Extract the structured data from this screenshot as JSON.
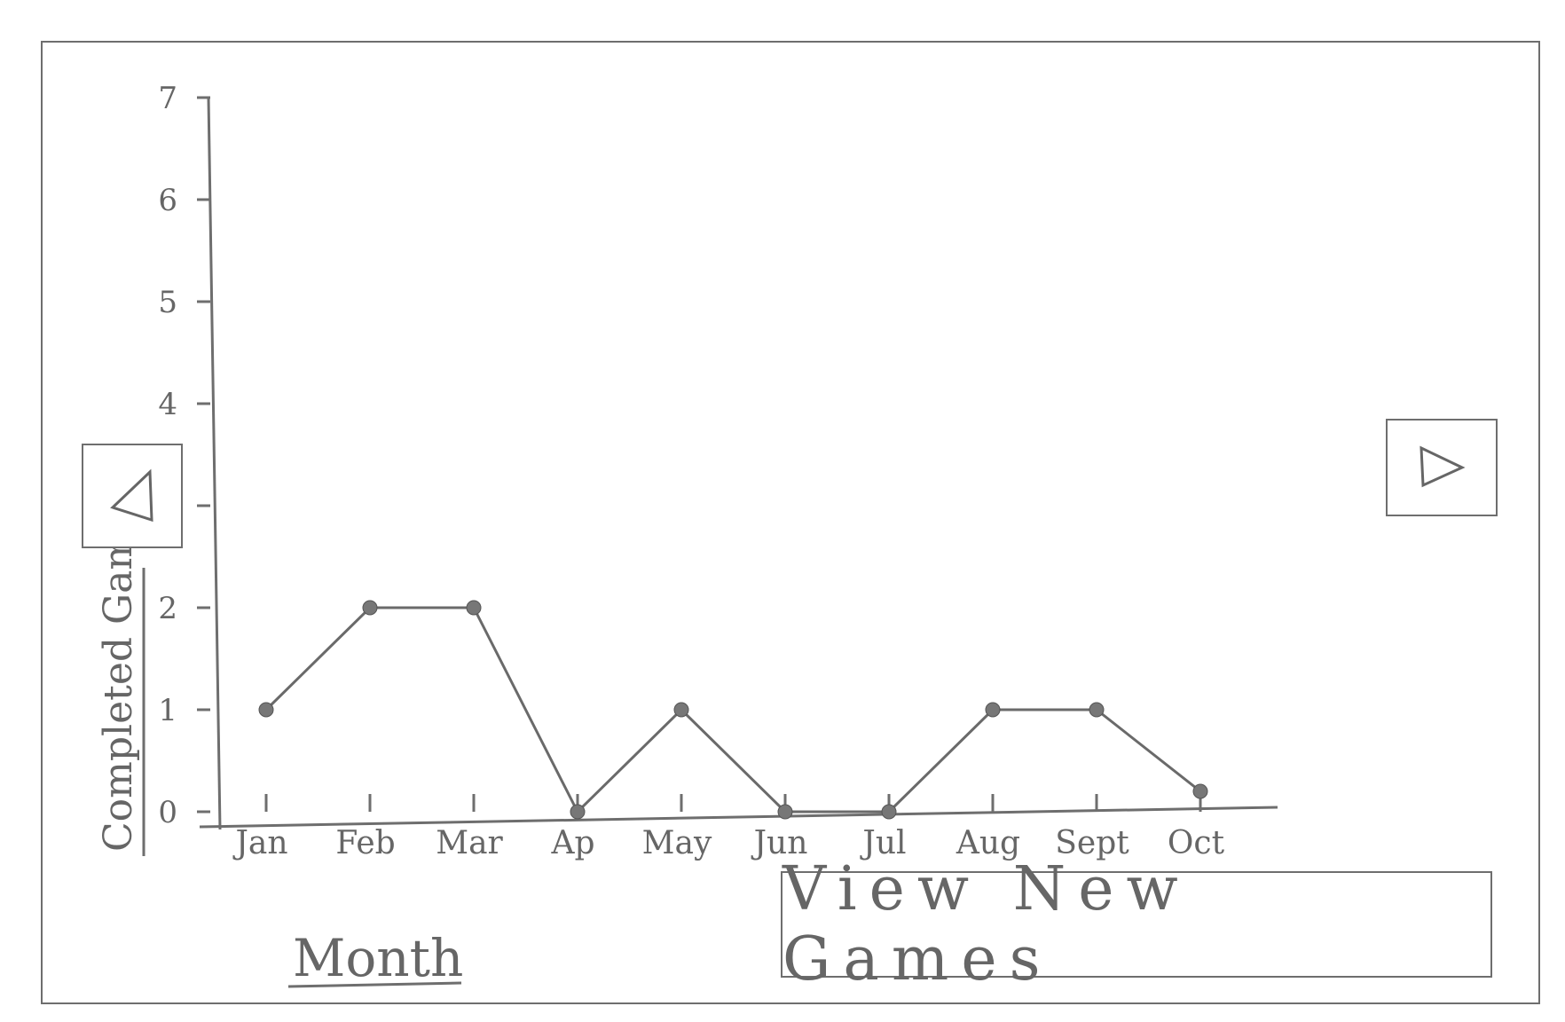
{
  "chart_data": {
    "type": "line",
    "categories": [
      "Jan",
      "Feb",
      "Mar",
      "Ap",
      "May",
      "Jun",
      "Jul",
      "Aug",
      "Sept",
      "Oct"
    ],
    "series": [
      {
        "values": [
          1,
          2,
          2,
          0,
          1,
          0,
          0,
          1,
          1,
          0.2
        ]
      }
    ],
    "y_ticks": [
      0,
      1,
      2,
      3,
      4,
      5,
      6,
      7
    ],
    "xlabel": "Month",
    "ylabel": "Completed Games",
    "ylim": [
      0,
      7
    ],
    "grid": false,
    "line_color": "#6a6a6a"
  },
  "controls": {
    "prev_icon": "triangle-left-icon",
    "next_icon": "triangle-right-icon",
    "view_new_games_label": "View New Games"
  }
}
